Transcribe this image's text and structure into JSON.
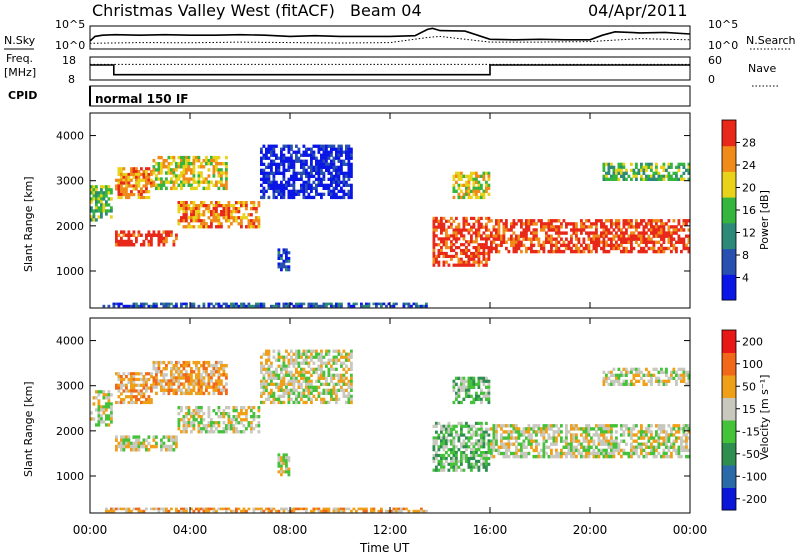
{
  "header": {
    "station": "Christmas Valley West (fitACF)",
    "beam": "Beam 04",
    "date": "04/Apr/2011"
  },
  "side_labels": {
    "nsky": "N.Sky",
    "freq_line1": "Freq.",
    "freq_line2": "[MHz]",
    "cpid": "CPID",
    "nsearch": "N.Search",
    "nave": "Nave"
  },
  "cpid_text": "normal 150 IF",
  "time_axis": {
    "label": "Time UT",
    "ticks": [
      "00:00",
      "04:00",
      "08:00",
      "12:00",
      "16:00",
      "20:00",
      "00:00"
    ],
    "range_hours": [
      0,
      24
    ]
  },
  "chart_data": [
    {
      "type": "line",
      "panel": "noise",
      "left_ticks": [
        "10^5",
        "10^0"
      ],
      "right_ticks": [
        "10^5",
        "10^0"
      ],
      "series": [
        {
          "name": "N.Sky",
          "style": "solid",
          "x": [
            0,
            0.2,
            0.5,
            1,
            2,
            3,
            4,
            5,
            6,
            7,
            8,
            9,
            10,
            11,
            12,
            13,
            13.5,
            13.7,
            14,
            15,
            16,
            17,
            18,
            19,
            20,
            20.5,
            21,
            22,
            23,
            24
          ],
          "y": [
            0.35,
            0.55,
            0.6,
            0.62,
            0.6,
            0.62,
            0.6,
            0.6,
            0.62,
            0.6,
            0.55,
            0.58,
            0.55,
            0.55,
            0.55,
            0.58,
            0.85,
            0.9,
            0.8,
            0.78,
            0.42,
            0.4,
            0.42,
            0.4,
            0.4,
            0.6,
            0.75,
            0.7,
            0.72,
            0.65
          ]
        },
        {
          "name": "N.Search",
          "style": "dotted",
          "x": [
            0,
            2,
            4,
            6,
            8,
            10,
            12,
            13.5,
            14,
            16,
            18,
            20,
            22,
            24
          ],
          "y": [
            0.25,
            0.28,
            0.27,
            0.3,
            0.28,
            0.26,
            0.28,
            0.5,
            0.55,
            0.3,
            0.3,
            0.32,
            0.45,
            0.4
          ]
        }
      ]
    },
    {
      "type": "line",
      "panel": "frequency",
      "left_ticks": [
        "18",
        "8"
      ],
      "right_ticks": [
        "60",
        "0"
      ],
      "series": [
        {
          "name": "Freq. [MHz]",
          "style": "solid",
          "x": [
            0,
            0.95,
            0.95,
            16,
            16,
            24
          ],
          "y": [
            14.5,
            14.5,
            10.3,
            10.3,
            14.5,
            14.5
          ]
        },
        {
          "name": "Nave",
          "style": "dotted",
          "x": [
            0,
            24
          ],
          "y": [
            14.8,
            14.8
          ]
        }
      ]
    },
    {
      "type": "heatmap",
      "panel": "power",
      "ylabel": "Slant Range [km]",
      "yticks": [
        1000,
        2000,
        3000,
        4000
      ],
      "ylim": [
        180,
        4500
      ],
      "colorbar": {
        "label": "Power [dB]",
        "ticks": [
          "4",
          "8",
          "12",
          "16",
          "20",
          "24",
          "28"
        ],
        "colors": [
          "#0a16e6",
          "#2750b0",
          "#2e8a78",
          "#34b53e",
          "#e8d21a",
          "#f08a18",
          "#e82818"
        ]
      },
      "echo_bands": [
        {
          "t": [
            0.0,
            0.9
          ],
          "r": [
            2100,
            2900
          ],
          "level": 3
        },
        {
          "t": [
            1.0,
            3.5
          ],
          "r": [
            1550,
            1900
          ],
          "level": 6
        },
        {
          "t": [
            3.5,
            6.8
          ],
          "r": [
            1950,
            2550
          ],
          "level": 5
        },
        {
          "t": [
            1.0,
            2.5
          ],
          "r": [
            2600,
            3300
          ],
          "level": 5
        },
        {
          "t": [
            2.5,
            5.5
          ],
          "r": [
            2800,
            3550
          ],
          "level": 4
        },
        {
          "t": [
            6.8,
            10.5
          ],
          "r": [
            2600,
            3800
          ],
          "level": 0
        },
        {
          "t": [
            7.5,
            8.0
          ],
          "r": [
            1000,
            1500
          ],
          "level": 1
        },
        {
          "t": [
            13.7,
            16.0
          ],
          "r": [
            1100,
            2200
          ],
          "level": 6
        },
        {
          "t": [
            14.5,
            16.0
          ],
          "r": [
            2600,
            3200
          ],
          "level": 4
        },
        {
          "t": [
            16.0,
            24.0
          ],
          "r": [
            1400,
            2150
          ],
          "level": 6
        },
        {
          "t": [
            20.5,
            24.0
          ],
          "r": [
            3000,
            3400
          ],
          "level": 3
        },
        {
          "t": [
            0.5,
            13.5
          ],
          "r": [
            200,
            300
          ],
          "level": 1
        }
      ]
    },
    {
      "type": "heatmap",
      "panel": "velocity",
      "ylabel": "Slant Range [km]",
      "yticks": [
        1000,
        2000,
        3000,
        4000
      ],
      "ylim": [
        180,
        4500
      ],
      "colorbar": {
        "label": "Velocity [m s⁻¹]",
        "ticks": [
          "200",
          "100",
          "50",
          "15",
          "-15",
          "-50",
          "-100",
          "-200"
        ],
        "colors": [
          "#0a16d8",
          "#2a6aa8",
          "#2e8e50",
          "#44c23a",
          "#c8c8be",
          "#f0a018",
          "#f06818",
          "#e81818"
        ]
      },
      "echo_bands": [
        {
          "t": [
            0.0,
            0.9
          ],
          "r": [
            2100,
            2900
          ],
          "level": 4
        },
        {
          "t": [
            1.0,
            3.5
          ],
          "r": [
            1550,
            1900
          ],
          "level": 4
        },
        {
          "t": [
            3.5,
            6.8
          ],
          "r": [
            1950,
            2550
          ],
          "level": 4
        },
        {
          "t": [
            1.0,
            2.5
          ],
          "r": [
            2600,
            3300
          ],
          "level": 5
        },
        {
          "t": [
            2.5,
            5.5
          ],
          "r": [
            2800,
            3550
          ],
          "level": 5
        },
        {
          "t": [
            6.8,
            10.5
          ],
          "r": [
            2600,
            3800
          ],
          "level": 4
        },
        {
          "t": [
            7.5,
            8.0
          ],
          "r": [
            1000,
            1500
          ],
          "level": 4
        },
        {
          "t": [
            13.7,
            16.0
          ],
          "r": [
            1100,
            2200
          ],
          "level": 3
        },
        {
          "t": [
            14.5,
            16.0
          ],
          "r": [
            2600,
            3200
          ],
          "level": 3
        },
        {
          "t": [
            16.0,
            24.0
          ],
          "r": [
            1400,
            2150
          ],
          "level": 4
        },
        {
          "t": [
            20.5,
            24.0
          ],
          "r": [
            3000,
            3400
          ],
          "level": 4
        },
        {
          "t": [
            0.5,
            13.5
          ],
          "r": [
            200,
            300
          ],
          "level": 5
        }
      ]
    }
  ]
}
